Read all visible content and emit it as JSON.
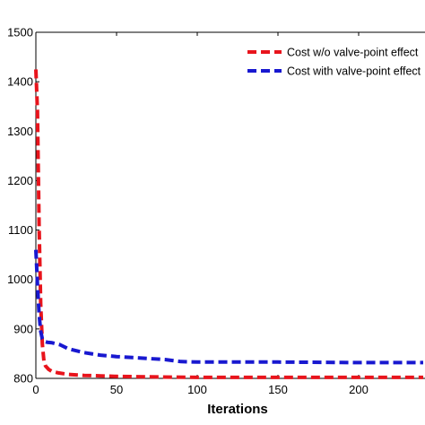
{
  "chart_data": {
    "type": "line",
    "title": "",
    "xlabel": "Iterations",
    "ylabel": "",
    "xlim": [
      0,
      240
    ],
    "ylim": [
      800,
      1500
    ],
    "xticks": [
      0,
      50,
      100,
      150,
      200
    ],
    "yticks": [
      800,
      900,
      1000,
      1100,
      1200,
      1300,
      1400,
      1500
    ],
    "grid": false,
    "legend_position": "top-right",
    "series": [
      {
        "name": "Cost w/o valve-point effect",
        "color": "#e8141c",
        "line_style": "dashed",
        "x": [
          0,
          1,
          2,
          3,
          4,
          5,
          6,
          8,
          10,
          14,
          20,
          30,
          40,
          50,
          70,
          100,
          150,
          200,
          240
        ],
        "y": [
          1425,
          1340,
          1110,
          950,
          870,
          835,
          825,
          818,
          814,
          811,
          808,
          806,
          805,
          804,
          803,
          802,
          802,
          802,
          802
        ]
      },
      {
        "name": "Cost with valve-point effect",
        "color": "#1818d0",
        "line_style": "dashed",
        "x": [
          0,
          1,
          2,
          3,
          4,
          5,
          7,
          10,
          15,
          20,
          30,
          40,
          50,
          60,
          80,
          90,
          100,
          150,
          200,
          240
        ],
        "y": [
          1060,
          990,
          930,
          895,
          880,
          875,
          873,
          872,
          868,
          860,
          852,
          847,
          844,
          842,
          838,
          834,
          833,
          833,
          832,
          832
        ]
      }
    ]
  }
}
